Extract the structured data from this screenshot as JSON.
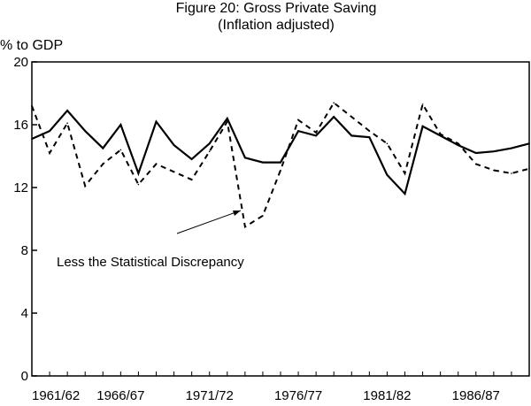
{
  "chart_data": {
    "type": "line",
    "title": "Figure 20: Gross Private Saving",
    "subtitle": "(Inflation adjusted)",
    "ylabel": "% to GDP",
    "xlabel": "",
    "ylim": [
      0,
      20
    ],
    "xlim": [
      1961,
      1989
    ],
    "yticks": [
      0,
      4,
      8,
      12,
      16,
      20
    ],
    "ytick_labels": [
      "0",
      "4",
      "8",
      "12",
      "16",
      "20"
    ],
    "xtick_labels": [
      "1961/62",
      "1966/67",
      "1971/72",
      "1976/77",
      "1981/82",
      "1986/87"
    ],
    "xtick_positions": [
      1961,
      1966,
      1971,
      1976,
      1981,
      1986
    ],
    "grid": false,
    "legend": "none",
    "annotation": "Less the Statistical Discrepancy",
    "x": [
      1961,
      1962,
      1963,
      1964,
      1965,
      1966,
      1967,
      1968,
      1969,
      1970,
      1971,
      1972,
      1973,
      1974,
      1975,
      1976,
      1977,
      1978,
      1979,
      1980,
      1981,
      1982,
      1983,
      1984,
      1985,
      1986,
      1987,
      1988,
      1989
    ],
    "series": [
      {
        "style": "solid",
        "color": "#000000",
        "values": [
          15.1,
          15.6,
          16.9,
          15.6,
          14.5,
          16.0,
          12.9,
          16.2,
          14.7,
          13.8,
          14.8,
          16.4,
          13.9,
          13.6,
          13.6,
          15.6,
          15.3,
          16.5,
          15.3,
          15.2,
          12.8,
          11.6,
          15.9,
          15.3,
          14.7,
          14.2,
          14.3,
          14.5,
          14.8
        ]
      },
      {
        "style": "dashed",
        "color": "#000000",
        "values": [
          17.2,
          14.2,
          16.1,
          12.1,
          13.5,
          14.4,
          12.2,
          13.5,
          13.0,
          12.5,
          14.3,
          16.2,
          9.5,
          10.2,
          13.1,
          16.3,
          15.5,
          17.4,
          16.5,
          15.6,
          14.8,
          12.9,
          17.3,
          15.4,
          14.8,
          13.5,
          13.1,
          12.9,
          13.2
        ]
      }
    ]
  }
}
